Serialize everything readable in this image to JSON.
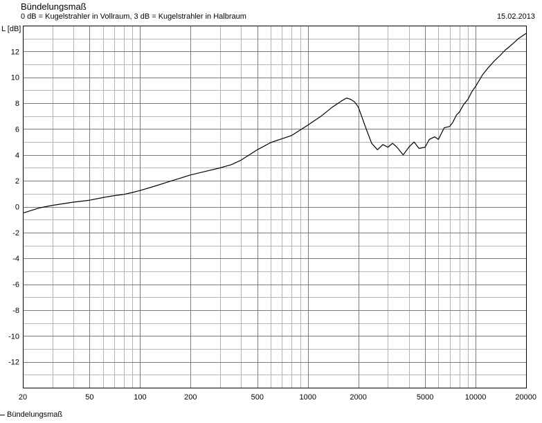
{
  "header": {
    "title": "Bündelungsmaß",
    "subtitle": "0 dB = Kugelstrahler in Vollraum, 3 dB = Kugelstrahler in Halbraum",
    "date": "15.02.2013"
  },
  "legend": {
    "label": "Bündelungsmaß"
  },
  "chart_data": {
    "type": "line",
    "title": "Bündelungsmaß",
    "subtitle": "0 dB = Kugelstrahler in Vollraum, 3 dB = Kugelstrahler in Halbraum",
    "xlabel": "",
    "ylabel": "L [dB]",
    "x_scale": "log",
    "xlim": [
      20,
      20000
    ],
    "ylim": [
      -14,
      14
    ],
    "x_ticks": [
      20,
      50,
      100,
      200,
      500,
      1000,
      2000,
      5000,
      10000,
      20000
    ],
    "y_ticks": [
      12,
      10,
      8,
      6,
      4,
      2,
      0,
      -2,
      -4,
      -6,
      -8,
      -10,
      -12
    ],
    "grid": true,
    "legend_position": "bottom-left",
    "colors": {
      "line": "#000000",
      "grid": "#b4b4b4",
      "background": "#ffffff"
    },
    "series": [
      {
        "name": "Bündelungsmaß",
        "x": [
          20,
          25,
          30,
          40,
          50,
          60,
          70,
          80,
          90,
          100,
          120,
          150,
          200,
          250,
          300,
          350,
          400,
          500,
          600,
          700,
          800,
          1000,
          1200,
          1400,
          1600,
          1700,
          1800,
          1900,
          2000,
          2200,
          2400,
          2600,
          2800,
          3000,
          3200,
          3400,
          3700,
          4000,
          4300,
          4600,
          5000,
          5300,
          5700,
          6000,
          6500,
          7000,
          7300,
          7700,
          8000,
          8500,
          9000,
          9500,
          10000,
          11000,
          12000,
          13000,
          14000,
          15000,
          16000,
          17000,
          18000,
          19000,
          20000
        ],
        "y": [
          -0.5,
          -0.1,
          0.1,
          0.35,
          0.5,
          0.7,
          0.85,
          0.95,
          1.1,
          1.25,
          1.55,
          1.95,
          2.45,
          2.75,
          3.0,
          3.25,
          3.6,
          4.4,
          4.95,
          5.25,
          5.5,
          6.3,
          7.0,
          7.7,
          8.2,
          8.4,
          8.3,
          8.1,
          7.7,
          6.2,
          4.9,
          4.4,
          4.8,
          4.6,
          4.9,
          4.6,
          4.0,
          4.6,
          5.0,
          4.5,
          4.6,
          5.2,
          5.4,
          5.2,
          6.1,
          6.2,
          6.5,
          7.1,
          7.3,
          7.9,
          8.3,
          8.9,
          9.3,
          10.2,
          10.8,
          11.3,
          11.7,
          12.1,
          12.4,
          12.7,
          13.0,
          13.2,
          13.4
        ]
      }
    ]
  }
}
